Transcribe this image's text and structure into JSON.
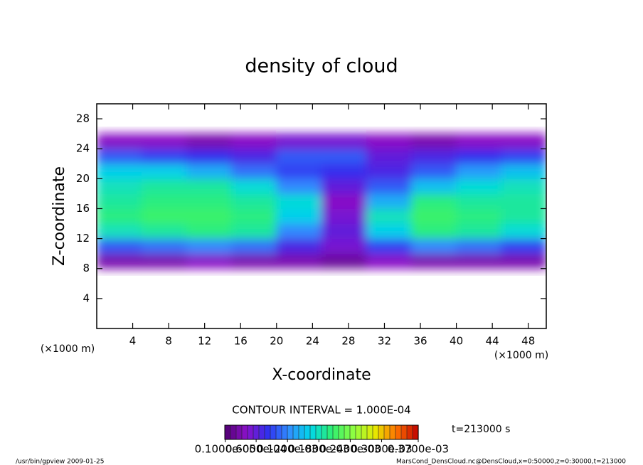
{
  "chart_data": {
    "type": "heatmap",
    "title": "density of cloud",
    "xlabel": "X-coordinate",
    "ylabel": "Z-coordinate",
    "x_unit_left": "(×1000 m)",
    "x_unit_right": "(×1000 m)",
    "contour_note": "CONTOUR INTERVAL = 1.000E-04",
    "time_label": "t=213000 s",
    "footer_left": "/usr/bin/gpview  2009-01-25",
    "footer_right": "MarsCond_DensCloud.nc@DensCloud,x=0:50000,z=0:30000,t=213000",
    "xlim": [
      0,
      50
    ],
    "ylim": [
      0,
      30
    ],
    "xticks": [
      4,
      8,
      12,
      16,
      20,
      24,
      28,
      32,
      36,
      40,
      44,
      48
    ],
    "yticks": [
      4,
      8,
      12,
      16,
      20,
      24,
      28
    ],
    "xbins": [
      0,
      5,
      10,
      15,
      20,
      25,
      30,
      35,
      40,
      45,
      50
    ],
    "zbins": [
      8,
      10,
      12,
      14,
      16,
      18,
      20,
      22,
      24,
      26
    ],
    "values": [
      [
        3e-05,
        3e-05,
        4e-05,
        3e-05,
        3e-05,
        2e-05,
        4e-05,
        3e-05,
        3e-05,
        3e-05
      ],
      [
        0.0001,
        0.00011,
        0.00012,
        0.00011,
        7e-05,
        5e-05,
        9e-05,
        0.00012,
        0.00011,
        9e-05
      ],
      [
        0.00018,
        0.00019,
        0.0002,
        0.00019,
        0.00012,
        6e-05,
        0.00016,
        0.0002,
        0.00019,
        0.00017
      ],
      [
        0.0002,
        0.00021,
        0.00021,
        0.0002,
        0.00016,
        5e-05,
        0.00018,
        0.00021,
        0.0002,
        0.00019
      ],
      [
        0.00019,
        0.0002,
        0.0002,
        0.00019,
        0.00017,
        4e-05,
        0.00014,
        0.0002,
        0.00019,
        0.00019
      ],
      [
        0.00018,
        0.00019,
        0.00019,
        0.00017,
        0.00012,
        6e-05,
        0.0001,
        0.00015,
        0.00017,
        0.00018
      ],
      [
        0.00016,
        0.00016,
        0.00014,
        0.00011,
        9e-05,
        8e-05,
        7e-05,
        0.0001,
        0.00013,
        0.00015
      ],
      [
        0.0001,
        9e-05,
        8e-05,
        7e-05,
        0.0001,
        0.0001,
        6e-05,
        7e-05,
        8e-05,
        9e-05
      ],
      [
        4e-05,
        4e-05,
        3e-05,
        4e-05,
        5e-05,
        5e-05,
        4e-05,
        3e-05,
        4e-05,
        4e-05
      ]
    ],
    "colormap": [
      "#500070",
      "#8a10c8",
      "#3030f0",
      "#3090ff",
      "#00d8e8",
      "#30f070",
      "#90ff40",
      "#e8e800",
      "#ff7000",
      "#c00000"
    ],
    "clim": [
      0,
      0.00037
    ],
    "cticks": [
      {
        "value": 1e-06,
        "label": "0.1000e-05"
      },
      {
        "value": 6e-05,
        "label": "0.6000e-04"
      },
      {
        "value": 0.00012,
        "label": "0.1200e-03"
      },
      {
        "value": 0.00018,
        "label": "0.1800e-03"
      },
      {
        "value": 0.00024,
        "label": "0.2400e-03"
      },
      {
        "value": 0.0003,
        "label": "0.3000e-03"
      },
      {
        "value": 0.00037,
        "label": "0.3700e-03"
      }
    ]
  }
}
